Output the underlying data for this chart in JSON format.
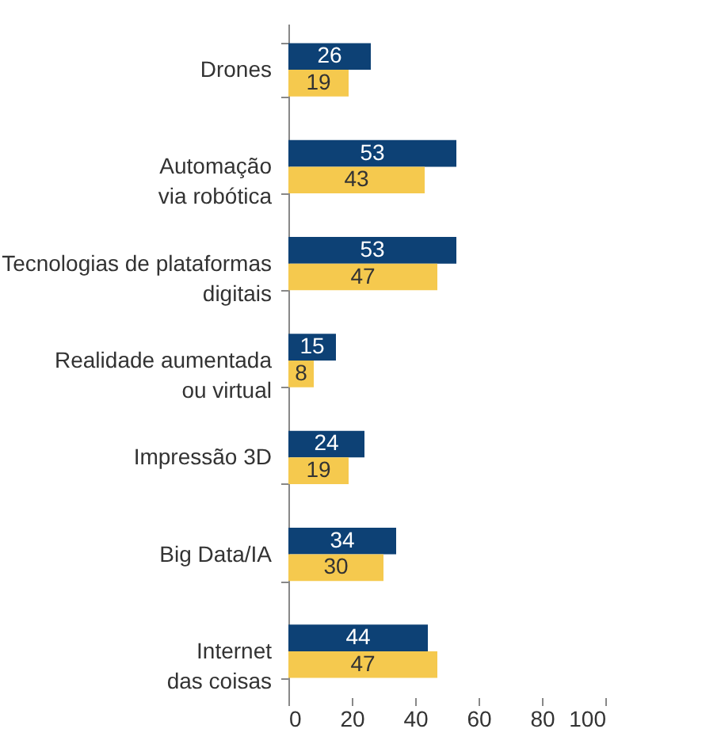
{
  "chart_data": {
    "type": "bar",
    "orientation": "horizontal",
    "categories": [
      "Drones",
      "Automação\nvia robótica",
      "Tecnologias de plataformas\ndigitais",
      "Realidade aumentada\nou  virtual",
      "Impressão 3D",
      "Big Data/IA",
      "Internet\ndas coisas"
    ],
    "series": [
      {
        "color": "#0d4175",
        "values": [
          26,
          53,
          53,
          15,
          24,
          34,
          44
        ]
      },
      {
        "color": "#f5c94e",
        "values": [
          19,
          43,
          47,
          8,
          19,
          30,
          47
        ]
      }
    ],
    "xlim": [
      0,
      100
    ],
    "xticks": [
      0,
      20,
      40,
      60,
      80,
      100
    ],
    "data_labels": true,
    "grid": false,
    "legend": false
  }
}
